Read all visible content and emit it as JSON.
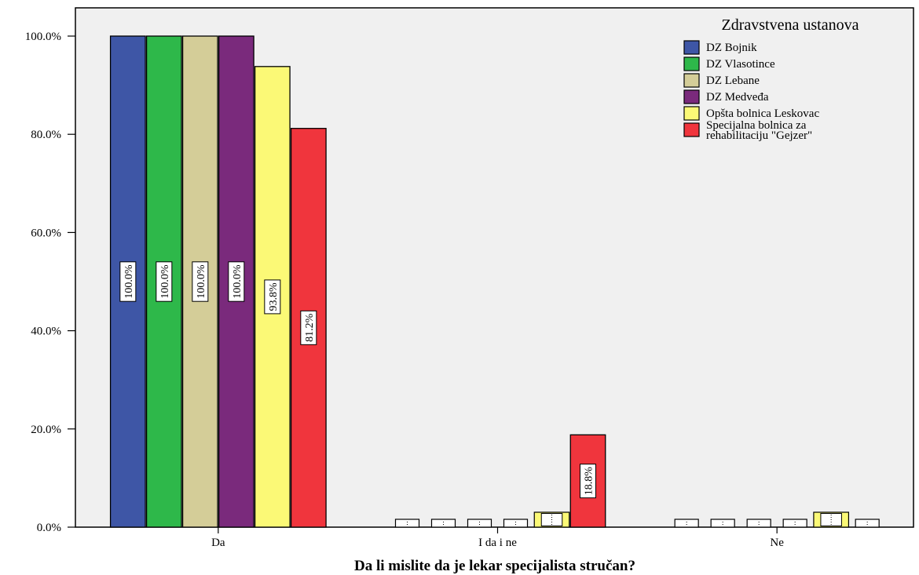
{
  "chart_data": {
    "type": "bar",
    "title": "",
    "xlabel": "Da li mislite da je lekar specijalista stručan?",
    "ylabel": "",
    "ylim": [
      0,
      100
    ],
    "yticks": [
      "0.0%",
      "20.0%",
      "40.0%",
      "60.0%",
      "80.0%",
      "100.0%"
    ],
    "ytick_values": [
      0,
      20,
      40,
      60,
      80,
      100
    ],
    "grid": false,
    "legend_position": "top-right",
    "legend_title": "Zdravstvena ustanova",
    "categories": [
      "Da",
      "I da i ne",
      "Ne"
    ],
    "series": [
      {
        "name": "DZ Bojnik",
        "color": "#3e56a6",
        "values": [
          100.0,
          0,
          0
        ],
        "labels": [
          "100.0%",
          "",
          ""
        ]
      },
      {
        "name": "DZ Vlasotince",
        "color": "#2eb84a",
        "values": [
          100.0,
          0,
          0
        ],
        "labels": [
          "100.0%",
          "",
          ""
        ]
      },
      {
        "name": "DZ Lebane",
        "color": "#d4cd98",
        "values": [
          100.0,
          0,
          0
        ],
        "labels": [
          "100.0%",
          "",
          ""
        ]
      },
      {
        "name": "DZ Medveđa",
        "color": "#7a2a7c",
        "values": [
          100.0,
          0,
          0
        ],
        "labels": [
          "100.0%",
          "",
          ""
        ]
      },
      {
        "name": "Opšta bolnica Leskovac",
        "color": "#fbf976",
        "values": [
          93.8,
          0,
          0
        ],
        "labels": [
          "93.8%",
          "",
          ""
        ]
      },
      {
        "name": "Specijalna bolnica za rehabilitaciju \"Gejzer\"",
        "color": "#f0353d",
        "values": [
          81.2,
          18.8,
          0
        ],
        "labels": [
          "81.2%",
          "18.8%",
          ""
        ]
      }
    ]
  }
}
